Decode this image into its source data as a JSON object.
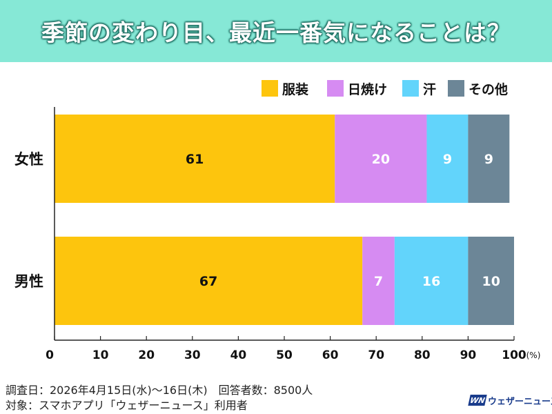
{
  "title": "季節の変わり目、最近一番気になることは？",
  "chart_data": {
    "type": "bar",
    "orientation": "horizontal",
    "stacked": true,
    "categories": [
      "女性",
      "男性"
    ],
    "series": [
      {
        "name": "服装",
        "values": [
          61,
          67
        ],
        "color": "#fdc50d",
        "label_color": "#111111"
      },
      {
        "name": "日焼け",
        "values": [
          20,
          7
        ],
        "color": "#d68bf2",
        "label_color": "#ffffff"
      },
      {
        "name": "汗",
        "values": [
          9,
          16
        ],
        "color": "#62d4fb",
        "label_color": "#ffffff"
      },
      {
        "name": "その他",
        "values": [
          9,
          10
        ],
        "color": "#6c8697",
        "label_color": "#ffffff"
      }
    ],
    "xlim": [
      0,
      100
    ],
    "xticks": [
      "0",
      "10",
      "20",
      "30",
      "40",
      "50",
      "60",
      "70",
      "80",
      "90",
      "100"
    ],
    "x_unit": "(%)",
    "legend_position": "top-right",
    "grid": false
  },
  "footer": {
    "line1": "調査日：2026年4月15日(水)～16日(木)　回答者数：8500人",
    "line2": "対象：スマホアプリ「ウェザーニュース」利用者"
  },
  "logo": {
    "mark": "WN",
    "text": "ウェザーニュース"
  }
}
